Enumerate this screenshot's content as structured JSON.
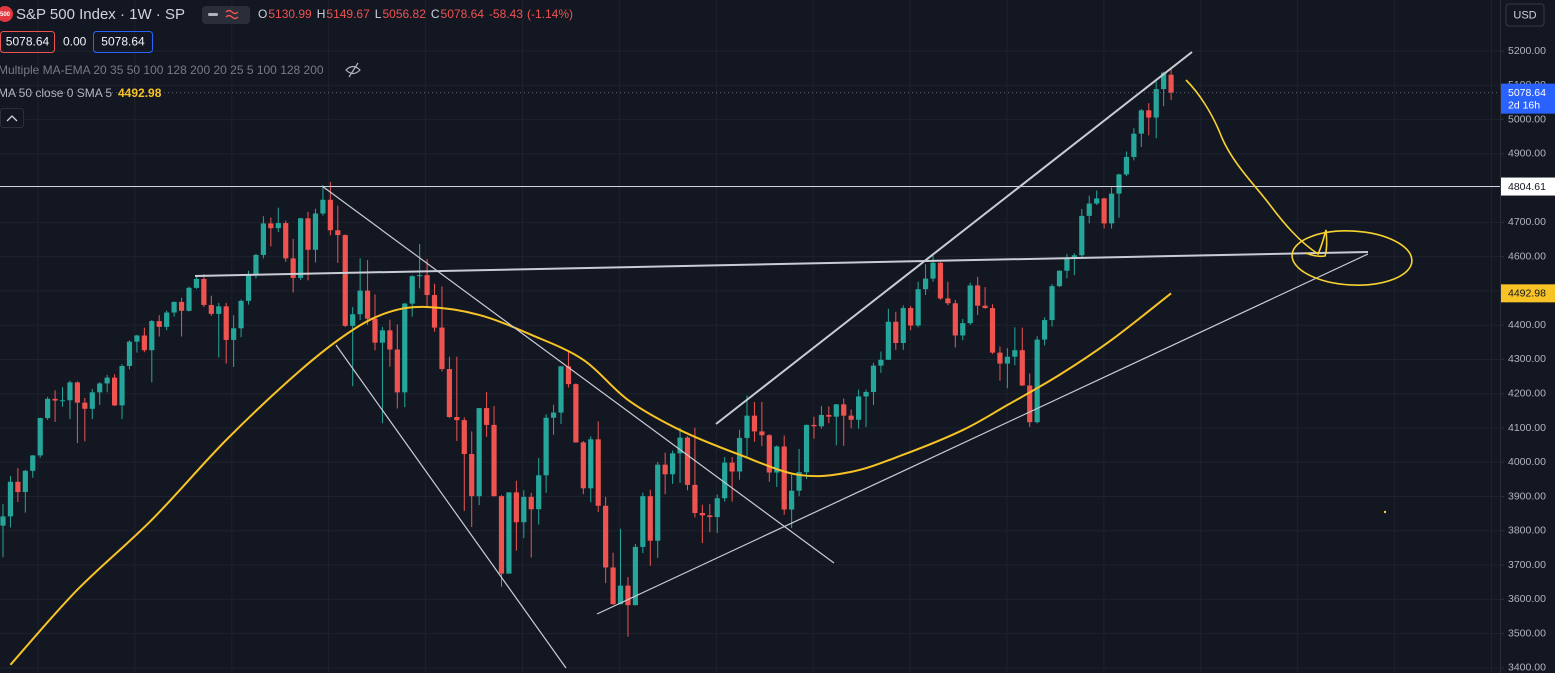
{
  "chart_data": {
    "type": "candlestick",
    "symbol_badge": "500",
    "title": "S&P 500 Index · 1W · SP",
    "ohlc_legend": [
      {
        "label": "O",
        "value": 5130.99
      },
      {
        "label": "H",
        "value": 5149.67
      },
      {
        "label": "L",
        "value": 5056.82
      },
      {
        "label": "C",
        "value": 5078.64
      }
    ],
    "change": -58.43,
    "change_pct": "(-1.14%)",
    "sell_label": "5078.64",
    "spread_label": "0.00",
    "buy_label": "5078.64",
    "indicators": [
      {
        "name": "Multiple MA-EMA 20 35 50 100 128 200 20 25 5 100 128 200"
      },
      {
        "name": "MA 50 close 0 SMA 5",
        "value": 4492.98
      }
    ],
    "currency": "USD",
    "up_color": "#26a69a",
    "down_color": "#ef5350",
    "ylim": [
      3385,
      5349
    ],
    "yticks": [
      {
        "value": 3400,
        "label": "3400.00"
      },
      {
        "value": 3500,
        "label": "3500.00"
      },
      {
        "value": 3600,
        "label": "3600.00"
      },
      {
        "value": 3700,
        "label": "3700.00"
      },
      {
        "value": 3800,
        "label": "3800.00"
      },
      {
        "value": 3900,
        "label": "3900.00"
      },
      {
        "value": 4000,
        "label": "4000.00"
      },
      {
        "value": 4100,
        "label": "4100.00"
      },
      {
        "value": 4200,
        "label": "4200.00"
      },
      {
        "value": 4300,
        "label": "4300.00"
      },
      {
        "value": 4400,
        "label": "4400.00"
      },
      {
        "value": 4500,
        "label": "4500.00"
      },
      {
        "value": 4600,
        "label": "4600.00"
      },
      {
        "value": 4700,
        "label": "4700.00"
      },
      {
        "value": 4800,
        "label": "4800.00"
      },
      {
        "value": 4900,
        "label": "4900.00"
      },
      {
        "value": 5000,
        "label": "5000.00"
      },
      {
        "value": 5100,
        "label": "5100.00"
      },
      {
        "value": 5200,
        "label": "5200.00"
      }
    ],
    "grid": true,
    "open": [
      3815,
      3842,
      3943,
      3913,
      3975,
      4020,
      4129,
      4185,
      4180,
      4181,
      4233,
      4174,
      4156,
      4204,
      4230,
      4247,
      4166,
      4281,
      4352,
      4370,
      4327,
      4412,
      4395,
      4437,
      4468,
      4442,
      4509,
      4535,
      4459,
      4433,
      4455,
      4357,
      4391,
      4471,
      4545,
      4605,
      4697,
      4683,
      4698,
      4595,
      4538,
      4712,
      4620,
      4726,
      4766,
      4677,
      4663,
      4398,
      4432,
      4501,
      4419,
      4349,
      4385,
      4329,
      4204,
      4463,
      4543,
      4546,
      4488,
      4393,
      4272,
      4132,
      4123,
      4024,
      3901,
      4158,
      4109,
      3901,
      3675,
      3912,
      3825,
      3899,
      3863,
      3962,
      4130,
      4145,
      4280,
      4228,
      4058,
      3924,
      4067,
      3873,
      3693,
      3586,
      3640,
      3583,
      3753,
      3901,
      3771,
      3993,
      3965,
      4026,
      4072,
      3934,
      3852,
      3845,
      3840,
      3895,
      3999,
      3973,
      4071,
      4136,
      4090,
      4079,
      3970,
      4046,
      3862,
      3917,
      3971,
      4109,
      4105,
      4138,
      4133,
      4169,
      4136,
      4124,
      4192,
      4205,
      4282,
      4299,
      4410,
      4348,
      4450,
      4399,
      4505,
      4536,
      4582,
      4478,
      4464,
      4370,
      4406,
      4516,
      4457,
      4450,
      4320,
      4288,
      4308,
      4327,
      4224,
      4117,
      4358,
      4415,
      4514,
      4559,
      4595,
      4604,
      4719,
      4755,
      4770,
      4697,
      4784,
      4840,
      4891,
      4959,
      5027,
      5006,
      5089,
      5130.99
    ],
    "high": [
      3878,
      3960,
      3983,
      3978,
      4021,
      4130,
      4191,
      4210,
      4219,
      4238,
      4236,
      4188,
      4214,
      4234,
      4255,
      4257,
      4286,
      4356,
      4372,
      4393,
      4415,
      4429,
      4443,
      4469,
      4480,
      4513,
      4545,
      4549,
      4486,
      4465,
      4465,
      4429,
      4475,
      4559,
      4608,
      4718,
      4714,
      4743,
      4705,
      4652,
      4713,
      4731,
      4740,
      4808,
      4818,
      4749,
      4665,
      4453,
      4595,
      4590,
      4490,
      4395,
      4416,
      4402,
      4465,
      4546,
      4637,
      4593,
      4521,
      4513,
      4308,
      4308,
      4131,
      4090,
      4158,
      4205,
      4164,
      3904,
      3913,
      3946,
      3918,
      3911,
      4012,
      4140,
      4168,
      4280,
      4325,
      4230,
      4062,
      4076,
      4119,
      3899,
      3736,
      3806,
      3665,
      3762,
      3911,
      3920,
      4001,
      4028,
      4034,
      4101,
      4076,
      4101,
      3876,
      3878,
      3906,
      4015,
      4015,
      4095,
      4195,
      4176,
      4176,
      4082,
      4049,
      4078,
      3964,
      4039,
      4110,
      4133,
      4164,
      4163,
      4170,
      4186,
      4154,
      4212,
      4212,
      4290,
      4323,
      4448,
      4439,
      4458,
      4456,
      4527,
      4578,
      4607,
      4584,
      4527,
      4474,
      4418,
      4524,
      4541,
      4511,
      4461,
      4338,
      4333,
      4394,
      4393,
      4259,
      4368,
      4423,
      4520,
      4560,
      4608,
      4610,
      4739,
      4778,
      4793,
      4772,
      4802,
      4842,
      4907,
      4975,
      5031,
      5048,
      5111,
      5140,
      5149.67
    ],
    "low": [
      3723,
      3810,
      3884,
      3853,
      3955,
      4013,
      4124,
      4118,
      4162,
      4126,
      4056,
      4061,
      4126,
      4167,
      4204,
      4164,
      4126,
      4271,
      4320,
      4321,
      4233,
      4367,
      4385,
      4425,
      4367,
      4440,
      4506,
      4453,
      4427,
      4306,
      4288,
      4278,
      4365,
      4460,
      4537,
      4595,
      4630,
      4672,
      4585,
      4495,
      4532,
      4531,
      4583,
      4720,
      4662,
      4582,
      4395,
      4222,
      4415,
      4401,
      4327,
      4114,
      4279,
      4157,
      4161,
      4425,
      4507,
      4450,
      4381,
      4265,
      4129,
      4062,
      3858,
      3811,
      3875,
      4074,
      3900,
      3637,
      3675,
      3742,
      3779,
      3722,
      3818,
      3911,
      4080,
      4112,
      4218,
      4057,
      3907,
      3883,
      3855,
      3647,
      3584,
      3585,
      3491,
      3582,
      3735,
      3698,
      3721,
      3907,
      3937,
      3940,
      3918,
      3839,
      3764,
      3796,
      3794,
      3885,
      3885,
      3949,
      4015,
      4060,
      4047,
      3943,
      3928,
      3847,
      3808,
      3901,
      3951,
      4069,
      4098,
      4114,
      4049,
      4048,
      4099,
      4098,
      4103,
      4167,
      4261,
      4298,
      4328,
      4328,
      4385,
      4394,
      4488,
      4527,
      4474,
      4458,
      4335,
      4356,
      4401,
      4430,
      4448,
      4316,
      4238,
      4216,
      4283,
      4223,
      4103,
      4113,
      4341,
      4396,
      4511,
      4537,
      4546,
      4599,
      4697,
      4751,
      4682,
      4682,
      4714,
      4835,
      4881,
      4920,
      4954,
      4946,
      5039,
      5056.82
    ],
    "close": [
      3842,
      3943,
      3913,
      3975,
      4020,
      4129,
      4185,
      4180,
      4181,
      4233,
      4174,
      4156,
      4204,
      4230,
      4247,
      4166,
      4281,
      4352,
      4370,
      4327,
      4412,
      4395,
      4437,
      4468,
      4442,
      4509,
      4535,
      4459,
      4433,
      4455,
      4357,
      4391,
      4471,
      4545,
      4605,
      4697,
      4683,
      4698,
      4595,
      4538,
      4712,
      4620,
      4726,
      4766,
      4677,
      4663,
      4398,
      4432,
      4501,
      4419,
      4349,
      4385,
      4329,
      4204,
      4463,
      4543,
      4546,
      4488,
      4393,
      4272,
      4132,
      4123,
      4024,
      3901,
      4158,
      4109,
      3901,
      3675,
      3912,
      3825,
      3899,
      3863,
      3962,
      4130,
      4145,
      4280,
      4228,
      4058,
      3924,
      4067,
      3873,
      3693,
      3586,
      3640,
      3583,
      3753,
      3901,
      3771,
      3993,
      3965,
      4026,
      4072,
      3934,
      3852,
      3845,
      3840,
      3895,
      3999,
      3973,
      4071,
      4136,
      4090,
      4079,
      3970,
      4046,
      3862,
      3917,
      3971,
      4109,
      4105,
      4138,
      4133,
      4169,
      4136,
      4124,
      4192,
      4205,
      4282,
      4299,
      4410,
      4348,
      4450,
      4399,
      4505,
      4536,
      4582,
      4478,
      4464,
      4370,
      4406,
      4516,
      4457,
      4450,
      4320,
      4288,
      4308,
      4327,
      4224,
      4117,
      4358,
      4415,
      4514,
      4559,
      4595,
      4604,
      4719,
      4755,
      4770,
      4697,
      4784,
      4840,
      4891,
      4959,
      5027,
      5006,
      5089,
      5137,
      5078.64
    ],
    "sma": {
      "color": "#f7c325",
      "x": [
        1,
        10,
        20,
        30,
        40,
        47,
        52,
        57,
        64,
        71,
        78,
        84,
        91,
        99,
        107,
        114,
        121,
        129,
        135,
        142,
        149,
        157
      ],
      "values": [
        3409,
        3628,
        3832,
        4065,
        4269,
        4386,
        4439,
        4453,
        4430,
        4372,
        4299,
        4182,
        4094,
        4022,
        3963,
        3972,
        4022,
        4094,
        4167,
        4255,
        4357,
        4492.98
      ]
    },
    "price_line": {
      "value": 5078.64,
      "countdown": "2d 16h",
      "color": "#2962ff"
    },
    "level_line": {
      "value": 4804.61
    }
  }
}
